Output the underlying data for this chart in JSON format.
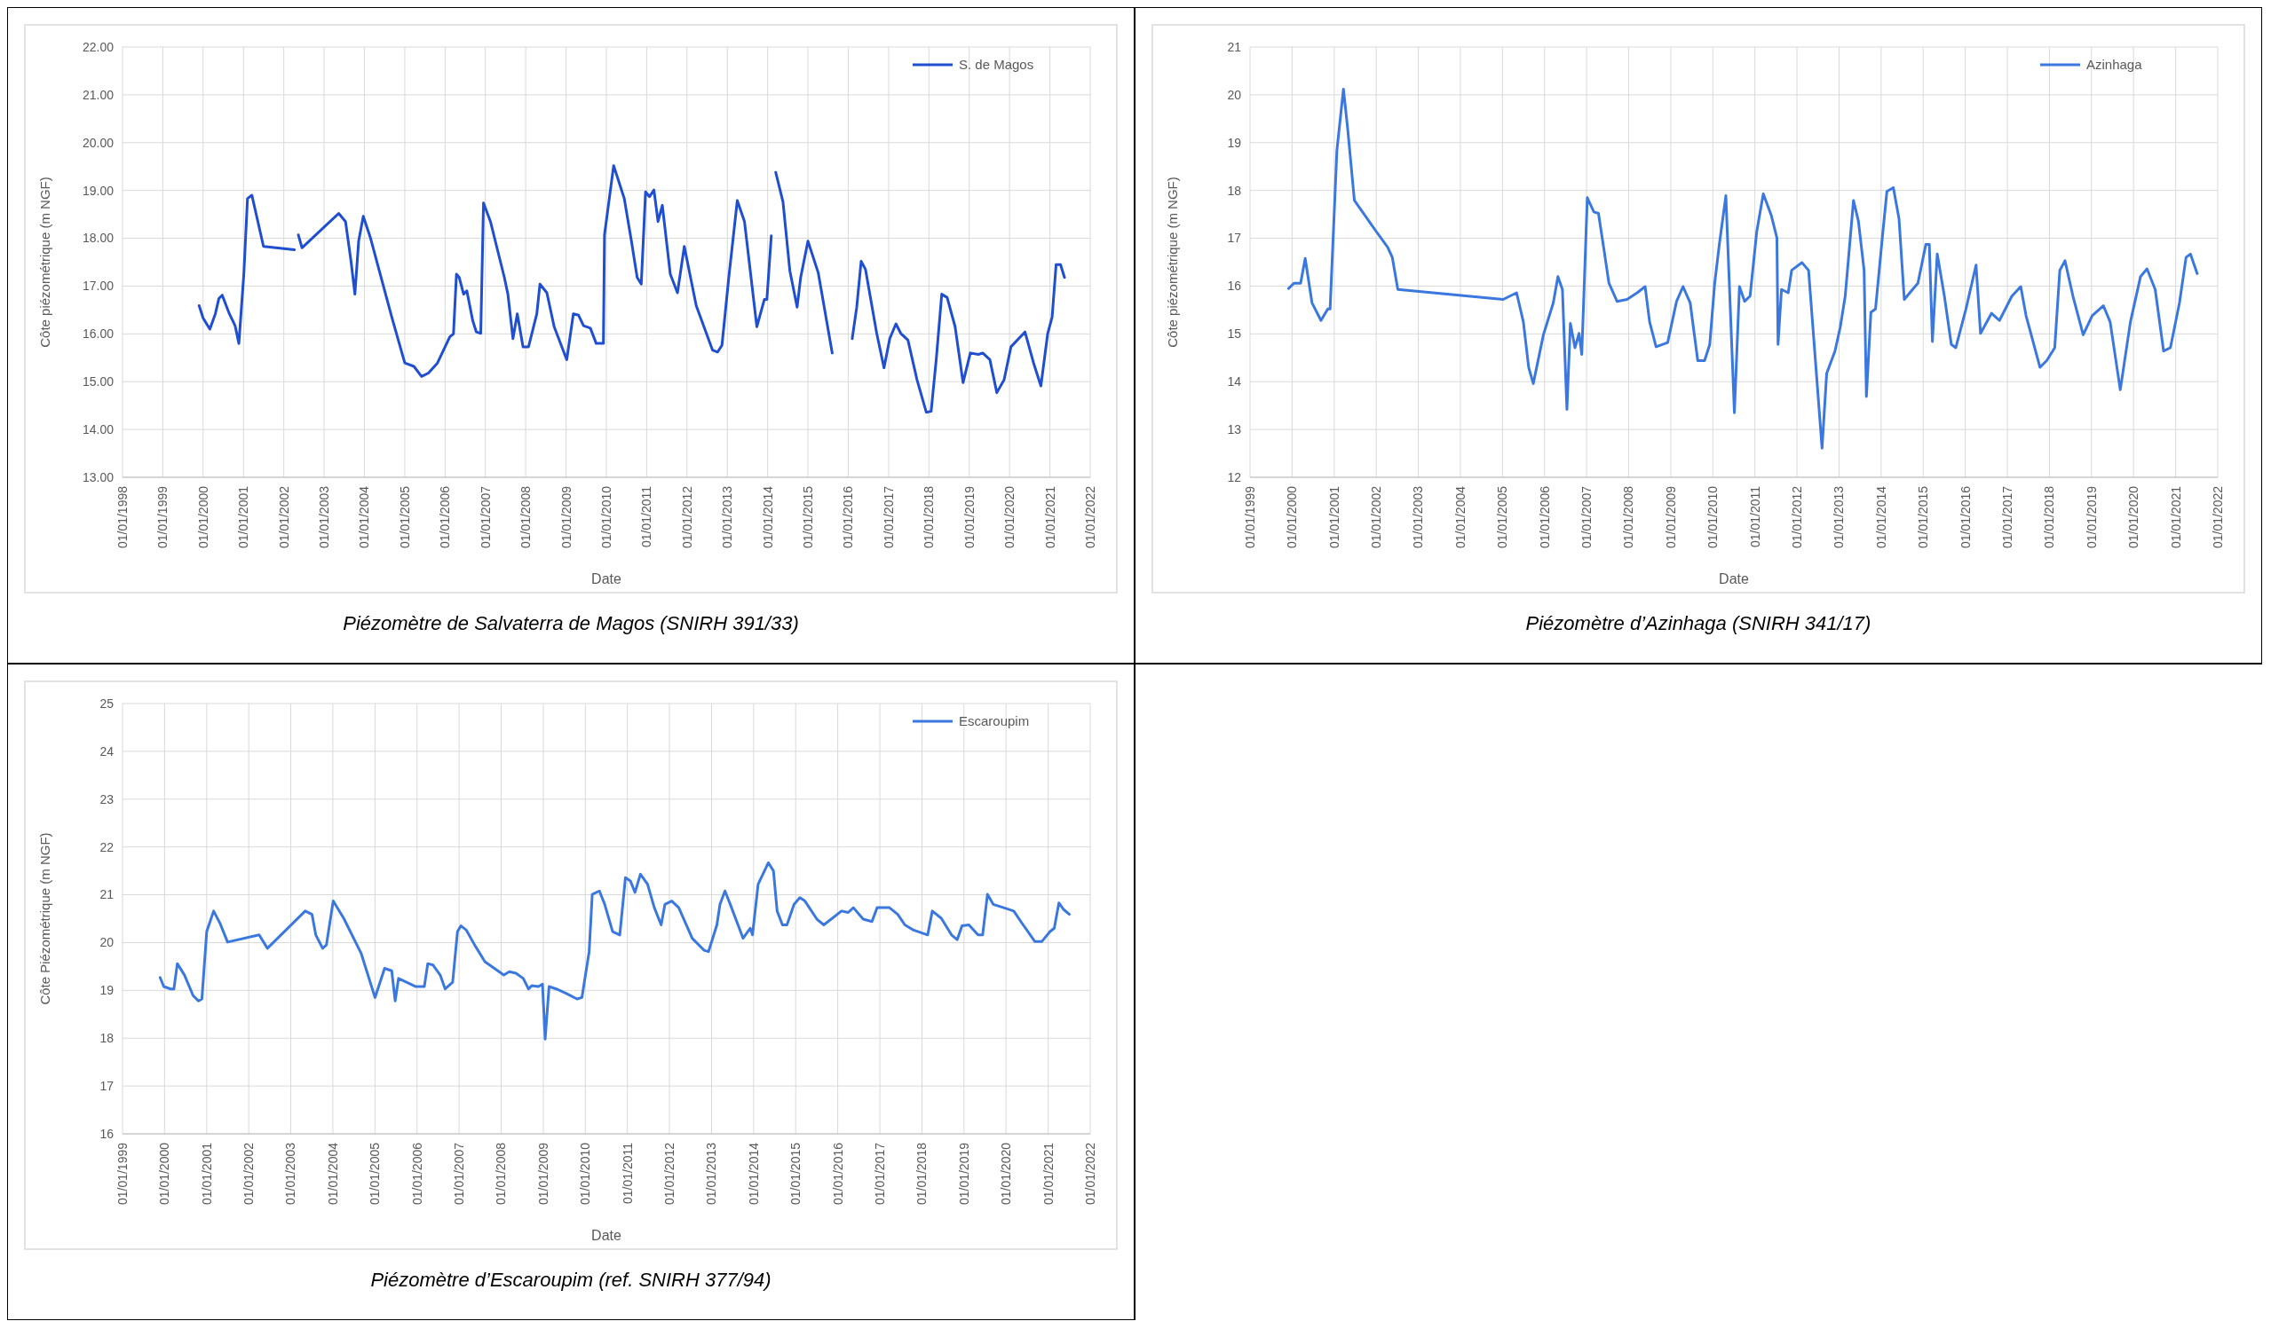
{
  "chart_data": [
    {
      "type": "line",
      "xlabel": "Date",
      "ylabel": "Côte piézométrique (m NGF)",
      "legend": "top right",
      "grid": true,
      "xlim": [
        "1998-01-01",
        "2022-01-01"
      ],
      "xticks": [
        {
          "value": "1998-01-01",
          "label": "01/01/1998"
        },
        {
          "value": "1999-01-01",
          "label": "01/01/1999"
        },
        {
          "value": "2000-01-01",
          "label": "01/01/2000"
        },
        {
          "value": "2001-01-01",
          "label": "01/01/2001"
        },
        {
          "value": "2002-01-01",
          "label": "01/01/2002"
        },
        {
          "value": "2003-01-01",
          "label": "01/01/2003"
        },
        {
          "value": "2004-01-01",
          "label": "01/01/2004"
        },
        {
          "value": "2005-01-01",
          "label": "01/01/2005"
        },
        {
          "value": "2006-01-01",
          "label": "01/01/2006"
        },
        {
          "value": "2007-01-01",
          "label": "01/01/2007"
        },
        {
          "value": "2008-01-01",
          "label": "01/01/2008"
        },
        {
          "value": "2009-01-01",
          "label": "01/01/2009"
        },
        {
          "value": "2010-01-01",
          "label": "01/01/2010"
        },
        {
          "value": "2011-01-01",
          "label": "01/01/2011"
        },
        {
          "value": "2012-01-01",
          "label": "01/01/2012"
        },
        {
          "value": "2013-01-01",
          "label": "01/01/2013"
        },
        {
          "value": "2014-01-01",
          "label": "01/01/2014"
        },
        {
          "value": "2015-01-01",
          "label": "01/01/2015"
        },
        {
          "value": "2016-01-01",
          "label": "01/01/2016"
        },
        {
          "value": "2017-01-01",
          "label": "01/01/2017"
        },
        {
          "value": "2018-01-01",
          "label": "01/01/2018"
        },
        {
          "value": "2019-01-01",
          "label": "01/01/2019"
        },
        {
          "value": "2020-01-01",
          "label": "01/01/2020"
        },
        {
          "value": "2021-01-01",
          "label": "01/01/2021"
        },
        {
          "value": "2022-01-01",
          "label": "01/01/2022"
        }
      ],
      "ylim": [
        13,
        22
      ],
      "yticks": [
        {
          "value": 13,
          "label": "13.00"
        },
        {
          "value": 14,
          "label": "14.00"
        },
        {
          "value": 15,
          "label": "15.00"
        },
        {
          "value": 16,
          "label": "16.00"
        },
        {
          "value": 17,
          "label": "17.00"
        },
        {
          "value": 18,
          "label": "18.00"
        },
        {
          "value": 19,
          "label": "19.00"
        },
        {
          "value": 20,
          "label": "20.00"
        },
        {
          "value": 21,
          "label": "21.00"
        },
        {
          "value": 22,
          "label": "22.00"
        }
      ],
      "annotations": [
        "Piézomètre de Salvaterra de Magos (SNIRH 391/33)"
      ],
      "series": [
        {
          "name": "S. de Magos",
          "color": "#1f4fd0",
          "x": [
            "1999-11-26",
            "2000-01-01",
            "2000-03-02",
            "2000-04-21",
            "2000-05-23",
            "2000-06-22",
            "2000-08-26",
            "2000-10-17",
            "2000-11-20",
            "2001-01-04",
            "2001-02-06",
            "2001-03-18",
            "2001-07-01",
            "2002-04-07",
            "2002-04-24",
            "2002-05-13",
            "2002-06-15",
            "2003-05-13",
            "2003-07-14",
            "2003-09-02",
            "2003-10-07",
            "2003-11-10",
            "2003-12-22",
            "2004-02-26",
            "2004-09-05",
            "2005-01-01",
            "2005-03-25",
            "2005-06-02",
            "2005-08-03",
            "2005-10-24",
            "2006-02-13",
            "2006-03-18",
            "2006-04-14",
            "2006-05-09",
            "2006-06-18",
            "2006-07-17",
            "2006-09-08",
            "2006-10-11",
            "2006-11-20",
            "2006-12-15",
            "2007-02-16",
            "2007-06-22",
            "2007-07-24",
            "2007-09-08",
            "2007-10-17",
            "2007-12-08",
            "2008-01-27",
            "2008-04-11",
            "2008-05-09",
            "2008-07-11",
            "2008-09-15",
            "2009-01-07",
            "2009-03-08",
            "2009-04-24",
            "2009-06-08",
            "2009-08-09",
            "2009-10-01",
            "2009-12-05",
            "2009-12-15",
            "2010-03-08",
            "2010-06-12",
            "2010-08-16",
            "2010-10-07",
            "2010-11-13",
            "2010-12-22",
            "2011-01-27",
            "2011-03-08",
            "2011-04-14",
            "2011-05-23",
            "2011-08-03",
            "2011-10-07",
            "2011-12-08",
            "2012-03-25",
            "2012-08-20",
            "2012-10-04",
            "2012-11-13",
            "2013-01-14",
            "2013-04-01",
            "2013-06-05",
            "2013-09-25",
            "2013-12-02",
            "2013-12-25",
            "2014-02-03",
            "2014-02-23",
            "2014-03-15",
            "2014-05-20",
            "2014-07-21",
            "2014-09-25",
            "2014-10-27",
            "2015-01-01",
            "2015-04-04",
            "2015-08-09",
            "2015-11-06",
            "2016-02-06",
            "2016-03-18",
            "2016-04-27",
            "2016-06-05",
            "2016-09-15",
            "2016-11-20",
            "2017-01-11",
            "2017-03-08",
            "2017-04-21",
            "2017-06-25",
            "2017-09-15",
            "2017-12-08",
            "2018-01-21",
            "2018-03-08",
            "2018-04-27",
            "2018-06-15",
            "2018-08-26",
            "2018-11-06",
            "2019-01-11",
            "2019-03-25",
            "2019-05-03",
            "2019-07-07",
            "2019-09-08",
            "2019-11-13",
            "2020-01-14",
            "2020-05-20",
            "2020-08-06",
            "2020-10-11",
            "2020-12-12",
            "2021-01-21",
            "2021-02-26",
            "2021-04-07",
            "2021-05-13"
          ],
          "values": [
            16.59,
            16.33,
            16.1,
            16.42,
            16.74,
            16.81,
            16.42,
            16.17,
            15.8,
            17.25,
            18.83,
            18.9,
            17.83,
            17.76,
            null,
            18.07,
            17.8,
            18.52,
            18.35,
            17.52,
            16.83,
            17.94,
            18.46,
            18.0,
            16.35,
            15.39,
            15.32,
            15.11,
            15.18,
            15.39,
            15.94,
            16.0,
            17.25,
            17.18,
            16.83,
            16.9,
            16.28,
            16.04,
            16.01,
            18.74,
            18.35,
            17.18,
            16.83,
            15.9,
            16.42,
            15.73,
            15.73,
            16.42,
            17.04,
            16.86,
            16.15,
            15.46,
            16.42,
            16.39,
            16.17,
            16.12,
            15.8,
            15.8,
            18.07,
            19.52,
            18.83,
            17.94,
            17.18,
            17.04,
            18.97,
            18.87,
            19.01,
            18.35,
            18.69,
            17.25,
            16.86,
            17.83,
            16.59,
            15.66,
            15.62,
            15.76,
            17.18,
            18.79,
            18.35,
            16.15,
            16.72,
            16.72,
            18.05,
            null,
            19.38,
            18.76,
            17.32,
            16.56,
            17.18,
            17.94,
            17.28,
            15.6,
            null,
            15.9,
            16.56,
            17.52,
            17.35,
            16.01,
            15.29,
            15.9,
            16.21,
            16.01,
            15.87,
            15.04,
            14.36,
            14.38,
            15.46,
            16.83,
            16.76,
            16.15,
            14.98,
            15.6,
            15.57,
            15.6,
            15.46,
            14.77,
            15.04,
            15.73,
            16.04,
            15.39,
            14.91,
            16.01,
            16.35,
            17.45,
            17.45,
            17.18
          ]
        }
      ]
    },
    {
      "type": "line",
      "xlabel": "Date",
      "ylabel": "Côte piézométrique (m NGF)",
      "legend": "top right",
      "grid": true,
      "xlim": [
        "1999-01-01",
        "2022-01-01"
      ],
      "xticks": [
        {
          "value": "1999-01-01",
          "label": "01/01/1999"
        },
        {
          "value": "2000-01-01",
          "label": "01/01/2000"
        },
        {
          "value": "2001-01-01",
          "label": "01/01/2001"
        },
        {
          "value": "2002-01-01",
          "label": "01/01/2002"
        },
        {
          "value": "2003-01-01",
          "label": "01/01/2003"
        },
        {
          "value": "2004-01-01",
          "label": "01/01/2004"
        },
        {
          "value": "2005-01-01",
          "label": "01/01/2005"
        },
        {
          "value": "2006-01-01",
          "label": "01/01/2006"
        },
        {
          "value": "2007-01-01",
          "label": "01/01/2007"
        },
        {
          "value": "2008-01-01",
          "label": "01/01/2008"
        },
        {
          "value": "2009-01-01",
          "label": "01/01/2009"
        },
        {
          "value": "2010-01-01",
          "label": "01/01/2010"
        },
        {
          "value": "2011-01-01",
          "label": "01/01/2011"
        },
        {
          "value": "2012-01-01",
          "label": "01/01/2012"
        },
        {
          "value": "2013-01-01",
          "label": "01/01/2013"
        },
        {
          "value": "2014-01-01",
          "label": "01/01/2014"
        },
        {
          "value": "2015-01-01",
          "label": "01/01/2015"
        },
        {
          "value": "2016-01-01",
          "label": "01/01/2016"
        },
        {
          "value": "2017-01-01",
          "label": "01/01/2017"
        },
        {
          "value": "2018-01-01",
          "label": "01/01/2018"
        },
        {
          "value": "2019-01-01",
          "label": "01/01/2019"
        },
        {
          "value": "2020-01-01",
          "label": "01/01/2020"
        },
        {
          "value": "2021-01-01",
          "label": "01/01/2021"
        },
        {
          "value": "2022-01-01",
          "label": "01/01/2022"
        }
      ],
      "ylim": [
        12,
        21
      ],
      "yticks": [
        12,
        13,
        14,
        15,
        16,
        17,
        18,
        19,
        20,
        21
      ],
      "annotations": [
        "Piézomètre d’Azinhaga (SNIRH 341/17)"
      ],
      "series": [
        {
          "name": "Azinhaga",
          "color": "#3a78e0",
          "x": [
            "1999-12-02",
            "2000-01-17",
            "2000-03-15",
            "2000-04-24",
            "2000-06-22",
            "2000-09-08",
            "2000-11-06",
            "2000-11-26",
            "2001-01-24",
            "2001-03-22",
            "2001-04-27",
            "2001-06-25",
            "2002-01-01",
            "2002-04-11",
            "2002-05-20",
            "2002-07-07",
            "2005-01-07",
            "2005-05-03",
            "2005-07-01",
            "2005-08-16",
            "2005-09-25",
            "2005-12-22",
            "2006-03-18",
            "2006-04-27",
            "2006-06-05",
            "2006-07-14",
            "2006-08-13",
            "2006-09-22",
            "2006-10-27",
            "2006-11-20",
            "2007-01-07",
            "2007-03-05",
            "2007-04-14",
            "2007-06-02",
            "2007-07-14",
            "2007-09-22",
            "2007-12-18",
            "2008-03-15",
            "2008-05-23",
            "2008-07-01",
            "2008-08-26",
            "2008-12-05",
            "2009-02-20",
            "2009-04-17",
            "2009-06-18",
            "2009-08-23",
            "2009-10-21",
            "2009-12-05",
            "2010-01-17",
            "2010-02-26",
            "2010-04-24",
            "2010-07-07",
            "2010-08-20",
            "2010-10-04",
            "2010-11-20",
            "2011-01-17",
            "2011-03-15",
            "2011-05-23",
            "2011-07-11",
            "2011-07-21",
            "2011-08-20",
            "2011-10-17",
            "2011-11-16",
            "2012-02-13",
            "2012-04-11",
            "2012-08-06",
            "2012-09-15",
            "2012-11-26",
            "2013-01-11",
            "2013-02-23",
            "2013-05-06",
            "2013-06-18",
            "2013-08-06",
            "2013-08-26",
            "2013-10-04",
            "2013-11-13",
            "2014-01-11",
            "2014-02-20",
            "2014-04-17",
            "2014-06-05",
            "2014-07-21",
            "2014-10-01",
            "2014-11-16",
            "2015-01-24",
            "2015-02-23",
            "2015-03-22",
            "2015-05-03",
            "2015-07-04",
            "2015-09-02",
            "2015-10-11",
            "2016-01-07",
            "2016-04-04",
            "2016-05-13",
            "2016-08-16",
            "2016-10-24",
            "2017-02-09",
            "2017-04-27",
            "2017-06-12",
            "2017-10-11",
            "2017-12-08",
            "2018-02-16",
            "2018-04-01",
            "2018-05-16",
            "2018-07-24",
            "2018-10-21",
            "2019-01-07",
            "2019-04-14",
            "2019-06-12",
            "2019-09-08",
            "2019-12-05",
            "2020-03-02",
            "2020-04-27",
            "2020-07-07",
            "2020-09-18",
            "2020-11-16",
            "2021-02-03",
            "2021-04-01",
            "2021-05-09",
            "2021-07-07"
          ],
          "values": [
            15.95,
            16.06,
            16.06,
            16.58,
            15.65,
            15.28,
            15.52,
            15.52,
            18.83,
            20.12,
            19.31,
            17.79,
            17.14,
            16.81,
            16.6,
            15.93,
            15.72,
            15.86,
            15.25,
            14.3,
            13.96,
            14.98,
            15.65,
            16.2,
            15.93,
            13.42,
            15.22,
            14.71,
            15.01,
            14.57,
            17.85,
            17.55,
            17.52,
            16.74,
            16.06,
            15.68,
            15.72,
            15.86,
            15.99,
            15.25,
            14.73,
            14.82,
            15.68,
            15.99,
            15.65,
            14.44,
            14.44,
            14.78,
            16.06,
            16.87,
            17.89,
            13.35,
            15.99,
            15.68,
            15.79,
            17.14,
            17.93,
            17.48,
            17.01,
            14.78,
            15.93,
            15.86,
            16.33,
            16.49,
            16.33,
            12.61,
            14.17,
            14.64,
            15.14,
            15.79,
            17.79,
            17.35,
            16.33,
            13.69,
            15.45,
            15.52,
            17.01,
            17.98,
            18.06,
            17.41,
            15.72,
            15.93,
            16.06,
            16.87,
            16.87,
            14.84,
            16.67,
            15.79,
            14.78,
            14.71,
            15.52,
            16.44,
            15.01,
            15.43,
            15.28,
            15.79,
            15.99,
            15.38,
            14.3,
            14.44,
            14.71,
            16.33,
            16.53,
            15.79,
            14.98,
            15.38,
            15.59,
            15.25,
            13.83,
            15.25,
            16.2,
            16.36,
            15.93,
            14.64,
            14.71,
            15.65,
            16.6,
            16.67,
            16.26
          ]
        }
      ]
    },
    {
      "type": "line",
      "xlabel": "Date",
      "ylabel": "Côte Piézométrique (m NGF)",
      "legend": "top right",
      "grid": true,
      "xlim": [
        "1999-01-01",
        "2022-01-01"
      ],
      "xticks": [
        {
          "value": "1999-01-01",
          "label": "01/01/1999"
        },
        {
          "value": "2000-01-01",
          "label": "01/01/2000"
        },
        {
          "value": "2001-01-01",
          "label": "01/01/2001"
        },
        {
          "value": "2002-01-01",
          "label": "01/01/2002"
        },
        {
          "value": "2003-01-01",
          "label": "01/01/2003"
        },
        {
          "value": "2004-01-01",
          "label": "01/01/2004"
        },
        {
          "value": "2005-01-01",
          "label": "01/01/2005"
        },
        {
          "value": "2006-01-01",
          "label": "01/01/2006"
        },
        {
          "value": "2007-01-01",
          "label": "01/01/2007"
        },
        {
          "value": "2008-01-01",
          "label": "01/01/2008"
        },
        {
          "value": "2009-01-01",
          "label": "01/01/2009"
        },
        {
          "value": "2010-01-01",
          "label": "01/01/2010"
        },
        {
          "value": "2011-01-01",
          "label": "01/01/2011"
        },
        {
          "value": "2012-01-01",
          "label": "01/01/2012"
        },
        {
          "value": "2013-01-01",
          "label": "01/01/2013"
        },
        {
          "value": "2014-01-01",
          "label": "01/01/2014"
        },
        {
          "value": "2015-01-01",
          "label": "01/01/2015"
        },
        {
          "value": "2016-01-01",
          "label": "01/01/2016"
        },
        {
          "value": "2017-01-01",
          "label": "01/01/2017"
        },
        {
          "value": "2018-01-01",
          "label": "01/01/2018"
        },
        {
          "value": "2019-01-01",
          "label": "01/01/2019"
        },
        {
          "value": "2020-01-01",
          "label": "01/01/2020"
        },
        {
          "value": "2021-01-01",
          "label": "01/01/2021"
        },
        {
          "value": "2022-01-01",
          "label": "01/01/2022"
        }
      ],
      "ylim": [
        16,
        25
      ],
      "yticks": [
        16,
        17,
        18,
        19,
        20,
        21,
        22,
        23,
        24,
        25
      ],
      "annotations": [
        "Piézomètre d’Escaroupim (ref. SNIRH 377/94)"
      ],
      "series": [
        {
          "name": "Escaroupim",
          "color": "#3a78e0",
          "x": [
            "1999-11-23",
            "1999-12-25",
            "2000-02-23",
            "2000-03-22",
            "2000-04-21",
            "2000-06-22",
            "2000-09-05",
            "2000-10-21",
            "2000-11-20",
            "2001-01-01",
            "2001-03-02",
            "2001-04-27",
            "2001-07-01",
            "2002-04-01",
            "2002-06-12",
            "2003-05-06",
            "2003-07-04",
            "2003-08-06",
            "2003-10-04",
            "2003-11-06",
            "2004-01-04",
            "2004-04-04",
            "2004-09-02",
            "2005-01-01",
            "2005-03-25",
            "2005-05-26",
            "2005-06-25",
            "2005-07-24",
            "2005-12-22",
            "2006-03-05",
            "2006-04-04",
            "2006-05-20",
            "2006-07-21",
            "2006-09-02",
            "2006-11-06",
            "2006-12-18",
            "2007-01-17",
            "2007-03-05",
            "2007-05-16",
            "2007-08-13",
            "2008-01-24",
            "2008-03-12",
            "2008-05-09",
            "2008-07-11",
            "2008-08-26",
            "2008-09-22",
            "2008-11-20",
            "2008-12-25",
            "2009-01-17",
            "2009-02-20",
            "2009-04-24",
            "2009-07-17",
            "2009-10-21",
            "2009-12-02",
            "2010-02-03",
            "2010-03-02",
            "2010-05-03",
            "2010-06-18",
            "2010-08-26",
            "2010-10-27",
            "2010-12-15",
            "2011-01-27",
            "2011-03-08",
            "2011-04-24",
            "2011-06-25",
            "2011-08-23",
            "2011-10-21",
            "2011-11-23",
            "2012-01-21",
            "2012-03-22",
            "2012-07-17",
            "2012-10-27",
            "2012-12-05",
            "2013-02-16",
            "2013-03-15",
            "2013-04-27",
            "2013-06-12",
            "2013-10-01",
            "2013-12-02",
            "2013-12-22",
            "2014-02-09",
            "2014-05-09",
            "2014-06-22",
            "2014-07-24",
            "2014-09-08",
            "2014-10-17",
            "2014-12-18",
            "2015-02-06",
            "2015-03-22",
            "2015-07-04",
            "2015-09-02",
            "2016-02-03",
            "2016-04-01",
            "2016-05-16",
            "2016-08-09",
            "2016-10-24",
            "2016-12-08",
            "2017-03-25",
            "2017-06-05",
            "2017-08-06",
            "2017-10-21",
            "2018-02-20",
            "2018-04-01",
            "2018-06-18",
            "2018-09-15",
            "2018-11-03",
            "2018-12-15",
            "2019-02-13",
            "2019-05-03",
            "2019-06-12",
            "2019-07-24",
            "2019-09-12",
            "2019-12-12",
            "2020-03-08",
            "2020-05-09",
            "2020-09-08",
            "2020-11-06",
            "2021-01-17",
            "2021-02-23",
            "2021-04-04",
            "2021-05-16",
            "2021-07-04"
          ],
          "values": [
            19.27,
            19.08,
            19.03,
            19.03,
            19.56,
            19.32,
            18.89,
            18.78,
            18.82,
            20.23,
            20.66,
            20.4,
            20.01,
            20.16,
            19.88,
            20.66,
            20.59,
            20.16,
            19.88,
            19.95,
            20.87,
            20.51,
            19.78,
            18.85,
            19.46,
            19.41,
            18.78,
            19.25,
            19.08,
            19.08,
            19.56,
            19.53,
            19.32,
            19.03,
            19.17,
            20.23,
            20.35,
            20.26,
            19.95,
            19.6,
            19.32,
            19.39,
            19.36,
            19.25,
            19.03,
            19.1,
            19.08,
            19.13,
            17.98,
            19.08,
            19.03,
            18.94,
            18.82,
            18.85,
            19.81,
            21.01,
            21.08,
            20.8,
            20.23,
            20.16,
            21.36,
            21.29,
            21.05,
            21.43,
            21.22,
            20.73,
            20.37,
            20.8,
            20.87,
            20.73,
            20.09,
            19.84,
            19.81,
            20.37,
            20.8,
            21.08,
            20.8,
            20.09,
            20.3,
            20.16,
            21.22,
            21.67,
            21.5,
            20.66,
            20.37,
            20.37,
            20.8,
            20.94,
            20.87,
            20.49,
            20.37,
            20.66,
            20.63,
            20.73,
            20.49,
            20.44,
            20.73,
            20.73,
            20.59,
            20.37,
            20.26,
            20.16,
            20.66,
            20.51,
            20.16,
            20.06,
            20.35,
            20.37,
            20.16,
            20.16,
            21.01,
            20.8,
            20.73,
            20.66,
            20.44,
            20.02,
            20.02,
            20.23,
            20.3,
            20.83,
            20.69,
            20.59
          ]
        }
      ]
    }
  ]
}
